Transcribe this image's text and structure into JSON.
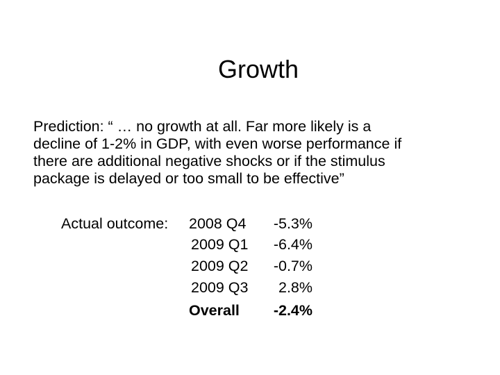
{
  "title": "Growth",
  "prediction": {
    "lines": [
      "Prediction:  “ … no growth at all. Far more likely is a",
      "decline of 1-2% in GDP, with even worse performance if",
      "there are additional negative shocks or if the stimulus",
      "package is delayed or too small to be effective”"
    ]
  },
  "outcome": {
    "label": "Actual outcome:",
    "rows": [
      [
        "2008 Q4",
        "-5.3%"
      ],
      [
        "2009 Q1",
        "-6.4%"
      ],
      [
        "2009 Q2",
        "-0.7%"
      ],
      [
        "2009 Q3",
        "2.8%"
      ],
      [
        "Overall",
        "-2.4%"
      ]
    ]
  }
}
